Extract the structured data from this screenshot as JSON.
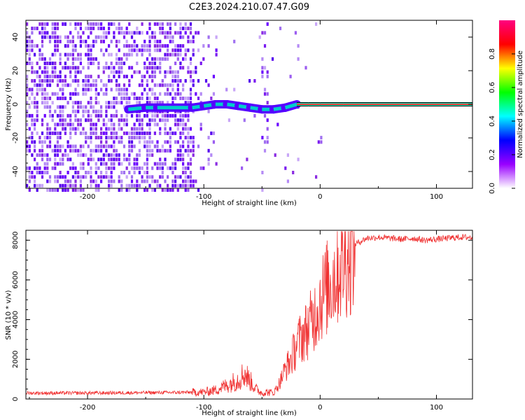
{
  "title": "C2E3.2024.210.07.47.G09",
  "chart_data": [
    {
      "type": "heatmap",
      "xlabel": "Height of straight line (km)",
      "ylabel": "Frequency (Hz)",
      "xlim": [
        -253,
        131
      ],
      "ylim": [
        -50,
        50
      ],
      "xticks": [
        -200,
        -100,
        0,
        100
      ],
      "yticks": [
        -40,
        -20,
        0,
        20,
        40
      ],
      "colorbar": {
        "label": "Normalized spectral amplitude",
        "range": [
          0,
          1
        ],
        "ticks": [
          "0.0",
          "0.2",
          "0.4",
          "0.6",
          "0.8"
        ],
        "colors": [
          "#ffffff",
          "#9900ff",
          "#0000ff",
          "#00ffff",
          "#00ff00",
          "#ffff00",
          "#ff0000",
          "#ff0080"
        ]
      },
      "features": {
        "noise_region_km": [
          -253,
          -110
        ],
        "sparse_region_km": [
          -110,
          0
        ],
        "signal_track": [
          {
            "x": -165,
            "y": -3
          },
          {
            "x": -150,
            "y": -2
          },
          {
            "x": -140,
            "y": -2
          },
          {
            "x": -110,
            "y": -2
          },
          {
            "x": -100,
            "y": -1
          },
          {
            "x": -90,
            "y": 0
          },
          {
            "x": -80,
            "y": 0
          },
          {
            "x": -70,
            "y": -1
          },
          {
            "x": -60,
            "y": -2
          },
          {
            "x": -50,
            "y": -3
          },
          {
            "x": -40,
            "y": -3
          },
          {
            "x": -30,
            "y": -2
          },
          {
            "x": -20,
            "y": 0
          },
          {
            "x": -10,
            "y": 0
          },
          {
            "x": 0,
            "y": 0
          },
          {
            "x": 20,
            "y": 0
          },
          {
            "x": 131,
            "y": 0
          }
        ]
      }
    },
    {
      "type": "line",
      "xlabel": "Height of straight line (km)",
      "ylabel": "SNR (10 * v/v)",
      "xlim": [
        -253,
        131
      ],
      "ylim": [
        0,
        8500
      ],
      "xticks": [
        -200,
        -100,
        0,
        100
      ],
      "yticks": [
        0,
        2000,
        4000,
        6000,
        8000
      ],
      "color": "#f03030",
      "series": [
        {
          "x": [
            -253,
            -200,
            -150,
            -120,
            -100,
            -90,
            -80,
            -70,
            -65,
            -60,
            -55,
            -50,
            -45,
            -40,
            -35,
            -30,
            -25,
            -20,
            -15,
            -10,
            -5,
            0,
            5,
            10,
            15,
            20,
            25,
            30,
            40,
            50,
            60,
            70,
            80,
            90,
            100,
            110,
            120,
            131
          ],
          "y": [
            300,
            300,
            320,
            330,
            350,
            450,
            700,
            1000,
            1300,
            900,
            500,
            300,
            350,
            300,
            800,
            1500,
            2000,
            2800,
            3200,
            3600,
            4200,
            5000,
            5500,
            6000,
            6500,
            7000,
            7400,
            7800,
            8100,
            8150,
            8100,
            8050,
            8100,
            8000,
            8050,
            8100,
            8150,
            8150
          ]
        }
      ]
    }
  ]
}
